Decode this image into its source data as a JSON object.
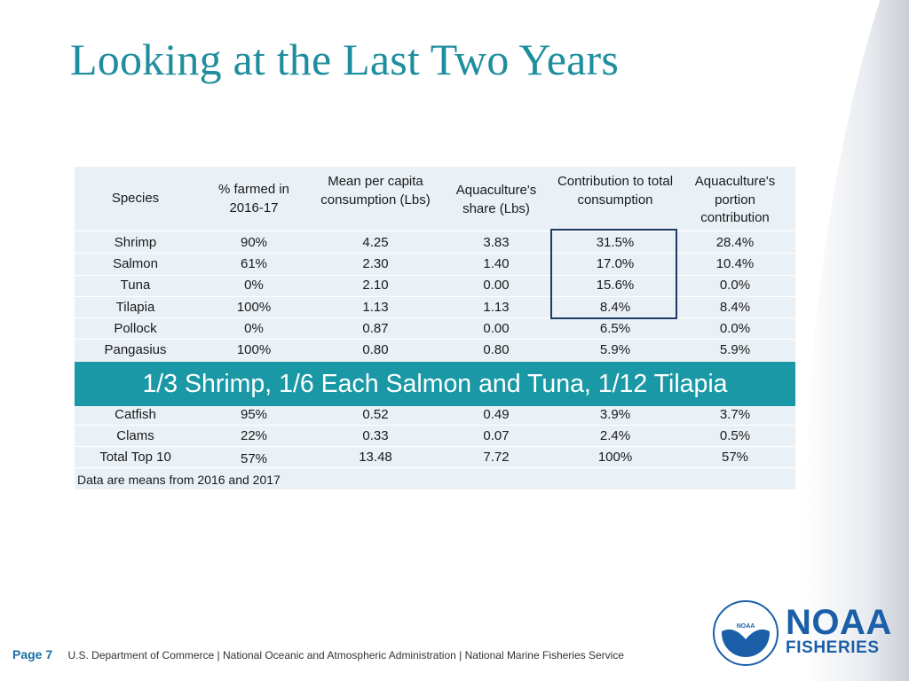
{
  "title": "Looking at the Last Two Years",
  "table": {
    "headers": [
      "Species",
      "% farmed in 2016-17",
      "Mean per capita consumption (Lbs)",
      "Aquaculture's share (Lbs)",
      "Contribution to total consumption",
      "Aquaculture's portion contribution"
    ],
    "rows_top": [
      [
        "Shrimp",
        "90%",
        "4.25",
        "3.83",
        "31.5%",
        "28.4%"
      ],
      [
        "Salmon",
        "61%",
        "2.30",
        "1.40",
        "17.0%",
        "10.4%"
      ],
      [
        "Tuna",
        "0%",
        "2.10",
        "0.00",
        "15.6%",
        "0.0%"
      ],
      [
        "Tilapia",
        "100%",
        "1.13",
        "1.13",
        "8.4%",
        "8.4%"
      ],
      [
        "Pollock",
        "0%",
        "0.87",
        "0.00",
        "6.5%",
        "0.0%"
      ],
      [
        "Pangasius",
        "100%",
        "0.80",
        "0.80",
        "5.9%",
        "5.9%"
      ]
    ],
    "rows_bottom": [
      [
        "Catfish",
        "95%",
        "0.52",
        "0.49",
        "3.9%",
        "3.7%"
      ],
      [
        "Clams",
        "22%",
        "0.33",
        "0.07",
        "2.4%",
        "0.5%"
      ],
      [
        "Total Top 10",
        "57%",
        "13.48",
        "7.72",
        "100%",
        "57%"
      ]
    ],
    "banner": "1/3 Shrimp, 1/6 Each Salmon and Tuna, 1/12 Tilapia",
    "note": "Data are means from 2016 and 2017"
  },
  "footer": {
    "page": "Page 7",
    "text": "U.S. Department of Commerce | National Oceanic and Atmospheric Administration | National Marine Fisheries Service"
  },
  "logo": {
    "line1": "NOAA",
    "line2": "FISHERIES",
    "seal_text": "NOAA",
    "color": "#1b5fa8"
  },
  "colors": {
    "title": "#1e8e9e",
    "banner": "#1a98a5",
    "panel": "#eaf1f6",
    "box": "#1c3a63"
  }
}
